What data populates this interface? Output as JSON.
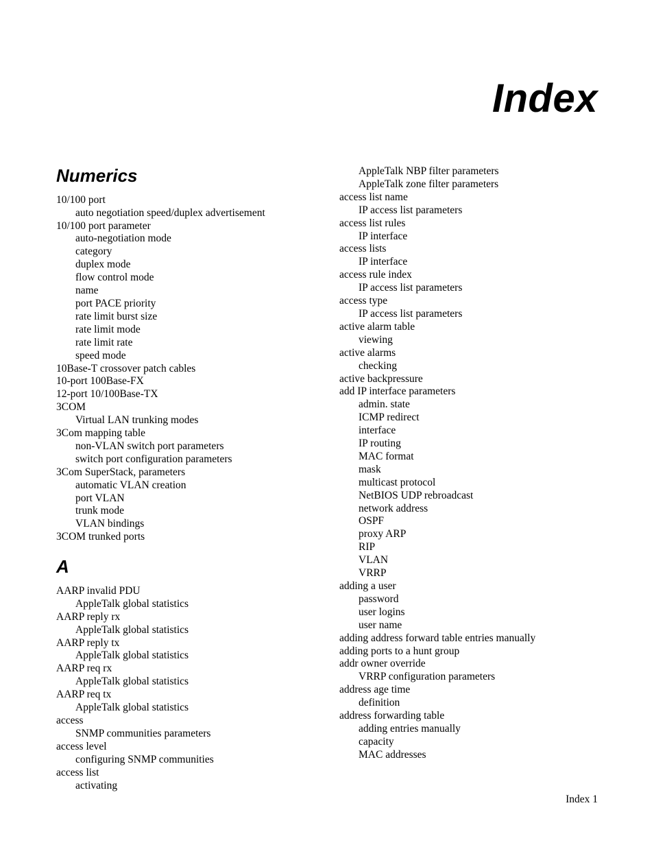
{
  "page_title": "Index",
  "footer": "Index 1",
  "sections": {
    "numerics_heading": "Numerics",
    "a_heading": "A"
  },
  "col_left": [
    {
      "t": "head",
      "bind": "sections.numerics_heading",
      "cls": "first"
    },
    {
      "t": "e",
      "l": 0,
      "v": "10/100 port"
    },
    {
      "t": "e",
      "l": 1,
      "v": "auto negotiation speed/duplex advertisement"
    },
    {
      "t": "e",
      "l": 0,
      "v": "10/100 port parameter"
    },
    {
      "t": "e",
      "l": 1,
      "v": "auto-negotiation mode"
    },
    {
      "t": "e",
      "l": 1,
      "v": "category"
    },
    {
      "t": "e",
      "l": 1,
      "v": "duplex mode"
    },
    {
      "t": "e",
      "l": 1,
      "v": "flow control mode"
    },
    {
      "t": "e",
      "l": 1,
      "v": "name"
    },
    {
      "t": "e",
      "l": 1,
      "v": "port PACE priority"
    },
    {
      "t": "e",
      "l": 1,
      "v": "rate limit burst size"
    },
    {
      "t": "e",
      "l": 1,
      "v": "rate limit mode"
    },
    {
      "t": "e",
      "l": 1,
      "v": "rate limit rate"
    },
    {
      "t": "e",
      "l": 1,
      "v": "speed mode"
    },
    {
      "t": "e",
      "l": 0,
      "v": "10Base-T crossover patch cables"
    },
    {
      "t": "e",
      "l": 0,
      "v": "10-port 100Base-FX"
    },
    {
      "t": "e",
      "l": 0,
      "v": "12-port 10/100Base-TX"
    },
    {
      "t": "e",
      "l": 0,
      "v": "3COM"
    },
    {
      "t": "e",
      "l": 1,
      "v": "Virtual LAN trunking modes"
    },
    {
      "t": "e",
      "l": 0,
      "v": "3Com mapping table"
    },
    {
      "t": "e",
      "l": 1,
      "v": "non-VLAN switch port parameters"
    },
    {
      "t": "e",
      "l": 1,
      "v": "switch port configuration parameters"
    },
    {
      "t": "e",
      "l": 0,
      "v": "3Com SuperStack, parameters"
    },
    {
      "t": "e",
      "l": 1,
      "v": "automatic VLAN creation"
    },
    {
      "t": "e",
      "l": 1,
      "v": "port VLAN"
    },
    {
      "t": "e",
      "l": 1,
      "v": "trunk mode"
    },
    {
      "t": "e",
      "l": 1,
      "v": "VLAN bindings"
    },
    {
      "t": "e",
      "l": 0,
      "v": "3COM trunked ports"
    },
    {
      "t": "head",
      "bind": "sections.a_heading",
      "cls": "a"
    },
    {
      "t": "e",
      "l": 0,
      "v": "AARP invalid PDU"
    },
    {
      "t": "e",
      "l": 1,
      "v": "AppleTalk global statistics"
    },
    {
      "t": "e",
      "l": 0,
      "v": "AARP reply rx"
    },
    {
      "t": "e",
      "l": 1,
      "v": "AppleTalk global statistics"
    },
    {
      "t": "e",
      "l": 0,
      "v": "AARP reply tx"
    },
    {
      "t": "e",
      "l": 1,
      "v": "AppleTalk global statistics"
    },
    {
      "t": "e",
      "l": 0,
      "v": "AARP req rx"
    },
    {
      "t": "e",
      "l": 1,
      "v": "AppleTalk global statistics"
    },
    {
      "t": "e",
      "l": 0,
      "v": "AARP req tx"
    },
    {
      "t": "e",
      "l": 1,
      "v": "AppleTalk global statistics"
    },
    {
      "t": "e",
      "l": 0,
      "v": "access"
    },
    {
      "t": "e",
      "l": 1,
      "v": "SNMP communities parameters"
    },
    {
      "t": "e",
      "l": 0,
      "v": "access level"
    },
    {
      "t": "e",
      "l": 1,
      "v": "configuring SNMP communities"
    },
    {
      "t": "e",
      "l": 0,
      "v": "access list"
    },
    {
      "t": "e",
      "l": 1,
      "v": "activating"
    }
  ],
  "col_right": [
    {
      "t": "e",
      "l": 1,
      "v": "AppleTalk NBP filter parameters"
    },
    {
      "t": "e",
      "l": 1,
      "v": "AppleTalk zone filter parameters"
    },
    {
      "t": "e",
      "l": 0,
      "v": "access list name"
    },
    {
      "t": "e",
      "l": 1,
      "v": "IP access list parameters"
    },
    {
      "t": "e",
      "l": 0,
      "v": "access list rules"
    },
    {
      "t": "e",
      "l": 1,
      "v": "IP interface"
    },
    {
      "t": "e",
      "l": 0,
      "v": "access lists"
    },
    {
      "t": "e",
      "l": 1,
      "v": "IP interface"
    },
    {
      "t": "e",
      "l": 0,
      "v": "access rule index"
    },
    {
      "t": "e",
      "l": 1,
      "v": "IP access list parameters"
    },
    {
      "t": "e",
      "l": 0,
      "v": "access type"
    },
    {
      "t": "e",
      "l": 1,
      "v": "IP access list parameters"
    },
    {
      "t": "e",
      "l": 0,
      "v": "active alarm table"
    },
    {
      "t": "e",
      "l": 1,
      "v": "viewing"
    },
    {
      "t": "e",
      "l": 0,
      "v": "active alarms"
    },
    {
      "t": "e",
      "l": 1,
      "v": "checking"
    },
    {
      "t": "e",
      "l": 0,
      "v": "active backpressure"
    },
    {
      "t": "e",
      "l": 0,
      "v": "add IP interface parameters"
    },
    {
      "t": "e",
      "l": 1,
      "v": "admin. state"
    },
    {
      "t": "e",
      "l": 1,
      "v": "ICMP redirect"
    },
    {
      "t": "e",
      "l": 1,
      "v": "interface"
    },
    {
      "t": "e",
      "l": 1,
      "v": "IP routing"
    },
    {
      "t": "e",
      "l": 1,
      "v": "MAC format"
    },
    {
      "t": "e",
      "l": 1,
      "v": "mask"
    },
    {
      "t": "e",
      "l": 1,
      "v": "multicast protocol"
    },
    {
      "t": "e",
      "l": 1,
      "v": "NetBIOS UDP rebroadcast"
    },
    {
      "t": "e",
      "l": 1,
      "v": "network address"
    },
    {
      "t": "e",
      "l": 1,
      "v": "OSPF"
    },
    {
      "t": "e",
      "l": 1,
      "v": "proxy ARP"
    },
    {
      "t": "e",
      "l": 1,
      "v": "RIP"
    },
    {
      "t": "e",
      "l": 1,
      "v": "VLAN"
    },
    {
      "t": "e",
      "l": 1,
      "v": "VRRP"
    },
    {
      "t": "e",
      "l": 0,
      "v": "adding a user"
    },
    {
      "t": "e",
      "l": 1,
      "v": "password"
    },
    {
      "t": "e",
      "l": 1,
      "v": "user logins"
    },
    {
      "t": "e",
      "l": 1,
      "v": "user name"
    },
    {
      "t": "e",
      "l": 0,
      "v": "adding address forward table entries manually"
    },
    {
      "t": "e",
      "l": 0,
      "v": "adding ports to a hunt group"
    },
    {
      "t": "e",
      "l": 0,
      "v": "addr owner override"
    },
    {
      "t": "e",
      "l": 1,
      "v": "VRRP configuration parameters"
    },
    {
      "t": "e",
      "l": 0,
      "v": "address age time"
    },
    {
      "t": "e",
      "l": 1,
      "v": "definition"
    },
    {
      "t": "e",
      "l": 0,
      "v": "address forwarding table"
    },
    {
      "t": "e",
      "l": 1,
      "v": "adding entries manually"
    },
    {
      "t": "e",
      "l": 1,
      "v": "capacity"
    },
    {
      "t": "e",
      "l": 1,
      "v": "MAC addresses"
    }
  ]
}
